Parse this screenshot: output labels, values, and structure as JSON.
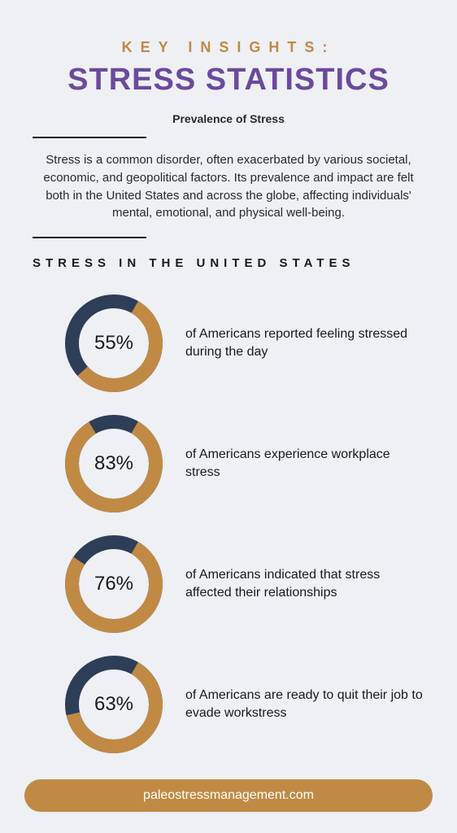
{
  "colors": {
    "background": "#eef0f4",
    "accent": "#c08a45",
    "dark": "#2e3d58",
    "title": "#6b4a9c",
    "text": "#1a1a1a",
    "pill_text": "#ffffff"
  },
  "header": {
    "eyebrow": "KEY INSIGHTS:",
    "title": "STRESS STATISTICS",
    "subtitle": "Prevalence of Stress"
  },
  "intro": "Stress is a common disorder, often exacerbated by various societal, economic, and geopolitical factors. Its prevalence and impact are felt both in the United States and across the globe, affecting individuals' mental, emotional, and physical well-being.",
  "section_heading": "STRESS IN THE UNITED STATES",
  "donut_style": {
    "size": 120,
    "stroke_width": 17,
    "accent_color": "#c08a45",
    "remainder_color": "#2e3d58",
    "pct_fontsize": 24
  },
  "stats": [
    {
      "pct": 55,
      "pct_label": "55%",
      "text": "of Americans reported feeling stressed during the day"
    },
    {
      "pct": 83,
      "pct_label": "83%",
      "text": "of Americans experience workplace stress"
    },
    {
      "pct": 76,
      "pct_label": "76%",
      "text": "of Americans indicated that stress affected their relationships"
    },
    {
      "pct": 63,
      "pct_label": "63%",
      "text": "of Americans are ready to quit their job to evade workstress"
    }
  ],
  "footer": {
    "text": "paleostressmanagement.com",
    "bg": "#c08a45"
  }
}
